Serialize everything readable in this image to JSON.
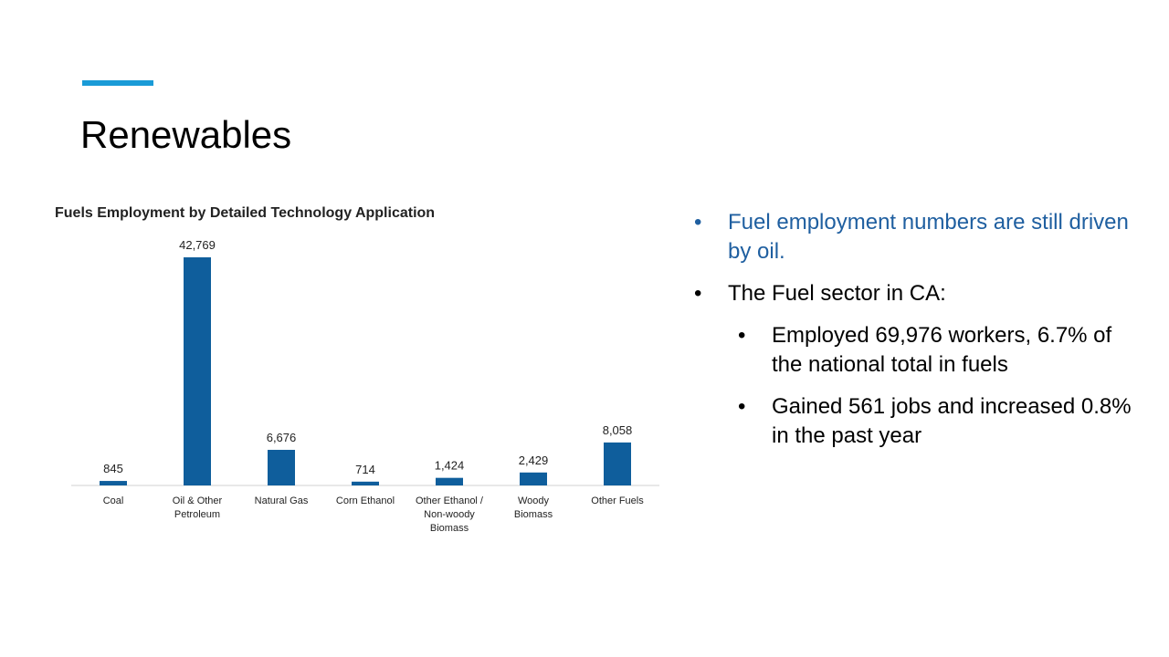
{
  "slide": {
    "title": "Renewables",
    "accent_color": "#1a9bd7"
  },
  "bullets": [
    {
      "text": "Fuel employment numbers are still driven by oil.",
      "level": 1,
      "color": "#1f5fa0"
    },
    {
      "text": "The Fuel sector in CA:",
      "level": 1,
      "color": "#000000"
    },
    {
      "text": "Employed 69,976 workers, 6.7% of the national total in fuels",
      "level": 2,
      "color": "#000000"
    },
    {
      "text": "Gained 561 jobs and increased 0.8% in the past year",
      "level": 2,
      "color": "#000000"
    }
  ],
  "bullet_symbol": "•",
  "chart_data": {
    "type": "bar",
    "title": "Fuels Employment by Detailed Technology Application",
    "categories": [
      [
        "Coal"
      ],
      [
        "Oil & Other",
        "Petroleum"
      ],
      [
        "Natural Gas"
      ],
      [
        "Corn Ethanol"
      ],
      [
        "Other Ethanol /",
        "Non-woody",
        "Biomass"
      ],
      [
        "Woody",
        "Biomass"
      ],
      [
        "Other Fuels"
      ]
    ],
    "values": [
      845,
      42769,
      6676,
      714,
      1424,
      2429,
      8058
    ],
    "value_labels": [
      "845",
      "42,769",
      "6,676",
      "714",
      "1,424",
      "2,429",
      "8,058"
    ],
    "bar_color": "#0f5e9c",
    "axis_color": "#d0d0d0",
    "ylim": [
      0,
      42769
    ],
    "grid": false,
    "xlabel": "",
    "ylabel": ""
  }
}
